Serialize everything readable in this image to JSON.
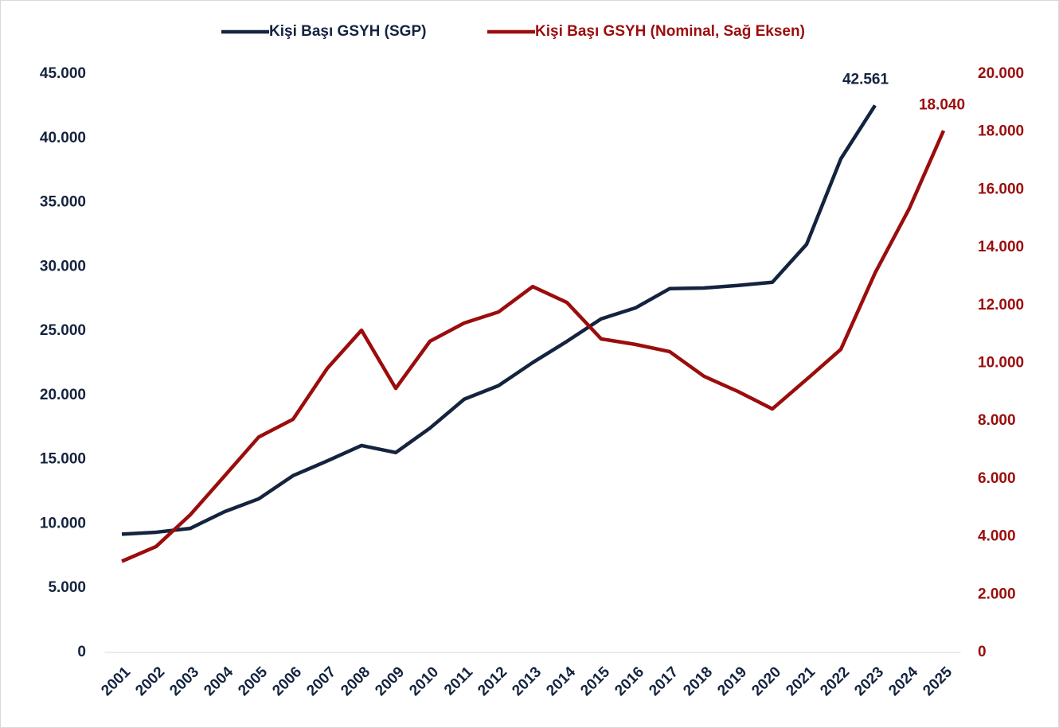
{
  "chart_data": {
    "type": "line",
    "categories": [
      "2001",
      "2002",
      "2003",
      "2004",
      "2005",
      "2006",
      "2007",
      "2008",
      "2009",
      "2010",
      "2011",
      "2012",
      "2013",
      "2014",
      "2015",
      "2016",
      "2017",
      "2018",
      "2019",
      "2020",
      "2021",
      "2022",
      "2023",
      "2024",
      "2025"
    ],
    "series": [
      {
        "name": "Kişi Başı GSYH (SGP)",
        "color": "#14243f",
        "values": [
          9200,
          9350,
          9650,
          10950,
          11950,
          13750,
          14900,
          16100,
          15550,
          17450,
          19700,
          20750,
          22550,
          24200,
          25950,
          26800,
          28300,
          28350,
          28550,
          28800,
          31750,
          38400,
          42561,
          null,
          null
        ],
        "value_labels": [
          null,
          null,
          null,
          null,
          null,
          null,
          null,
          null,
          null,
          null,
          null,
          null,
          null,
          null,
          null,
          null,
          null,
          null,
          null,
          null,
          null,
          null,
          "42.561",
          null,
          null
        ]
      },
      {
        "name": "Kişi Başı GSYH (Nominal, Sağ Eksen)",
        "color": "#9b0d0d",
        "axis": "y2",
        "values": [
          3150,
          3660,
          4760,
          6100,
          7450,
          8060,
          9820,
          11140,
          9130,
          10760,
          11390,
          11770,
          12650,
          12100,
          10840,
          10650,
          10400,
          9550,
          9020,
          8420,
          9440,
          10480,
          13120,
          15350,
          18040
        ],
        "value_labels": [
          null,
          null,
          null,
          null,
          null,
          null,
          null,
          null,
          null,
          null,
          null,
          null,
          null,
          null,
          null,
          null,
          null,
          null,
          null,
          null,
          null,
          null,
          null,
          null,
          "18.040"
        ]
      }
    ],
    "ylim": [
      0,
      45000
    ],
    "yticks": [
      0,
      {
        "value": 5000,
        "label": "5.000"
      },
      {
        "value": 10000,
        "label": "10.000"
      },
      {
        "value": 15000,
        "label": "15.000"
      },
      {
        "value": 20000,
        "label": "20.000"
      },
      {
        "value": 25000,
        "label": "25.000"
      },
      {
        "value": 30000,
        "label": "30.000"
      },
      {
        "value": 35000,
        "label": "35.000"
      },
      {
        "value": 40000,
        "label": "40.000"
      },
      {
        "value": 45000,
        "label": "45.000"
      }
    ],
    "y2lim": [
      0,
      20000
    ],
    "y2ticks": [
      0,
      {
        "value": 2000,
        "label": "2.000"
      },
      {
        "value": 4000,
        "label": "4.000"
      },
      {
        "value": 6000,
        "label": "6.000"
      },
      {
        "value": 8000,
        "label": "8.000"
      },
      {
        "value": 10000,
        "label": "10.000"
      },
      {
        "value": 12000,
        "label": "12.000"
      },
      {
        "value": 14000,
        "label": "14.000"
      },
      {
        "value": 16000,
        "label": "16.000"
      },
      {
        "value": 18000,
        "label": "18.000"
      },
      {
        "value": 20000,
        "label": "20.000"
      }
    ],
    "grid": false,
    "legend": "top"
  }
}
